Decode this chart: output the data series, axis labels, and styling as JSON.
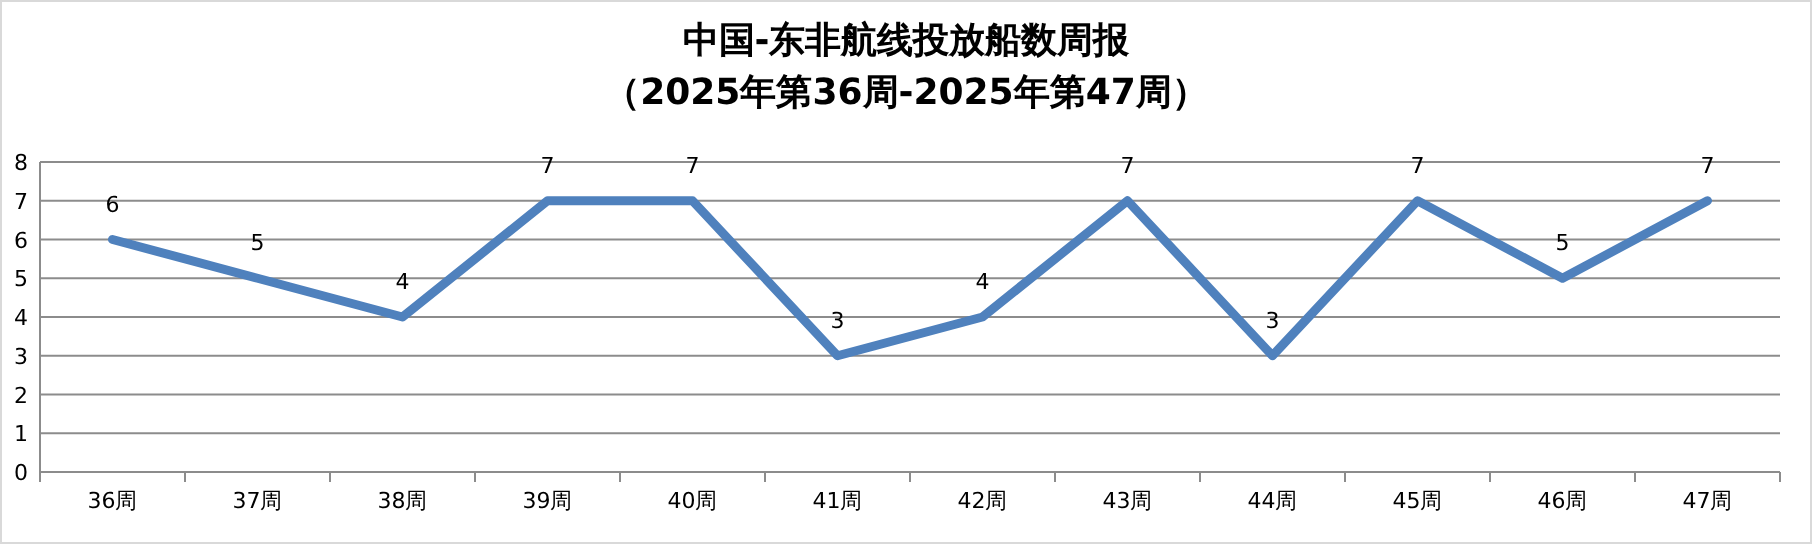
{
  "chart_data": {
    "type": "line",
    "title": "中国-东非航线投放船数周报",
    "subtitle": "（2025年第36周-2025年第47周）",
    "categories": [
      "36周",
      "37周",
      "38周",
      "39周",
      "40周",
      "41周",
      "42周",
      "43周",
      "44周",
      "45周",
      "46周",
      "47周"
    ],
    "series": [
      {
        "color": "#4f81bd",
        "values": [
          6,
          5,
          4,
          7,
          7,
          3,
          4,
          7,
          3,
          7,
          5,
          7
        ]
      }
    ],
    "ylim": [
      0,
      8
    ],
    "yticks": [
      0,
      1,
      2,
      3,
      4,
      5,
      6,
      7,
      8
    ],
    "grid": "y",
    "data_labels": true
  }
}
